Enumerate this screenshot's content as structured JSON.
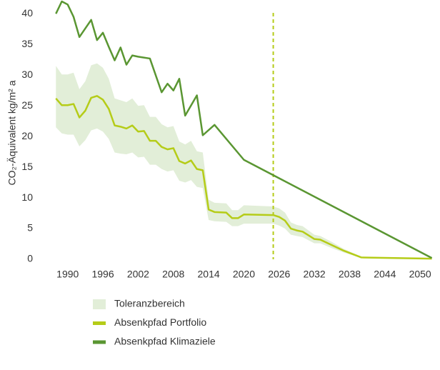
{
  "chart_data": {
    "type": "line",
    "y_label": "CO₂-Äquivalent kg/m² a",
    "xlim": [
      1987.6,
      2052.9
    ],
    "ylim": [
      0,
      42
    ],
    "xticks": [
      1990,
      1996,
      2002,
      2008,
      2014,
      2020,
      2026,
      2032,
      2038,
      2044,
      2050
    ],
    "yticks": [
      0,
      5,
      10,
      15,
      20,
      25,
      30,
      35,
      40
    ],
    "vline": {
      "x": 2025,
      "color": "#b5cc18"
    },
    "series": [
      {
        "name": "Toleranzbereich",
        "color": "#e2eed8",
        "x": [
          1988,
          1989,
          1990,
          1991,
          1992,
          1993,
          1994,
          1995,
          1996,
          1997,
          1998,
          1999,
          2000,
          2001,
          2002,
          2003,
          2004,
          2005,
          2006,
          2007,
          2008,
          2009,
          2010,
          2011,
          2012,
          2013,
          2014,
          2015,
          2017,
          2018,
          2019,
          2020,
          2025,
          2026,
          2027,
          2028,
          2029,
          2030,
          2031,
          2032,
          2033,
          2035,
          2037,
          2040,
          2052
        ],
        "lower": [
          21.5,
          20.5,
          20.3,
          20.3,
          18.4,
          19.4,
          21,
          21.3,
          20.8,
          19.6,
          17.4,
          17.2,
          17.1,
          17.4,
          16.6,
          16.7,
          15.4,
          15.4,
          14.7,
          14.3,
          14.5,
          12.8,
          12.5,
          12.9,
          11.8,
          11.6,
          6.4,
          6.2,
          6.1,
          5.4,
          5.4,
          5.8,
          5.8,
          5.5,
          5,
          4,
          3.8,
          3.6,
          3.1,
          2.6,
          2.6,
          1.8,
          1.1,
          0.2,
          0.1
        ],
        "upper": [
          31.5,
          30.1,
          30.1,
          30.4,
          27.7,
          29,
          31.6,
          31.9,
          31.2,
          29.4,
          26.2,
          25.9,
          25.6,
          26.2,
          25,
          25.1,
          23.2,
          23.2,
          22,
          21.5,
          21.7,
          19.2,
          18.7,
          19.3,
          17.6,
          17.4,
          9.7,
          9.2,
          9.1,
          8,
          8,
          8.8,
          8.6,
          8.3,
          7.6,
          6,
          5.6,
          5.4,
          4.7,
          4,
          3.8,
          2.8,
          1.7,
          0.4,
          0.1
        ]
      },
      {
        "name": "Absenkpfad Portfolio",
        "color": "#b5cc18",
        "x": [
          1988,
          1989,
          1990,
          1991,
          1992,
          1993,
          1994,
          1995,
          1996,
          1997,
          1998,
          1999,
          2000,
          2001,
          2002,
          2003,
          2004,
          2005,
          2006,
          2007,
          2008,
          2009,
          2010,
          2011,
          2012,
          2013,
          2014,
          2015,
          2017,
          2018,
          2019,
          2020,
          2025,
          2026,
          2027,
          2028,
          2029,
          2030,
          2031,
          2032,
          2033,
          2035,
          2037,
          2040,
          2052
        ],
        "values": [
          26.2,
          25.1,
          25.1,
          25.3,
          23.1,
          24.2,
          26.3,
          26.6,
          26,
          24.5,
          21.8,
          21.6,
          21.3,
          21.8,
          20.8,
          20.9,
          19.3,
          19.3,
          18.3,
          17.9,
          18.1,
          16,
          15.6,
          16.1,
          14.7,
          14.5,
          8.1,
          7.7,
          7.6,
          6.7,
          6.7,
          7.3,
          7.2,
          6.9,
          6.3,
          5,
          4.7,
          4.5,
          3.9,
          3.3,
          3.2,
          2.3,
          1.4,
          0.3,
          0.1
        ]
      },
      {
        "name": "Absenkpfad Klimaziele",
        "color": "#5a9632",
        "x": [
          1988,
          1989,
          1990,
          1991,
          1992,
          1993,
          1994,
          1995,
          1996,
          1997,
          1998,
          1999,
          2000,
          2001,
          2002,
          2004,
          2006,
          2007,
          2008,
          2009,
          2010,
          2012,
          2013,
          2015,
          2020,
          2052
        ],
        "values": [
          40,
          42,
          41.5,
          39.5,
          36.2,
          37.6,
          39,
          35.7,
          36.9,
          34.6,
          32.4,
          34.5,
          31.7,
          33.2,
          33,
          32.7,
          27.2,
          28.6,
          27.5,
          29.4,
          23.4,
          26.7,
          20.2,
          21.9,
          16.2,
          0.2
        ]
      }
    ]
  }
}
